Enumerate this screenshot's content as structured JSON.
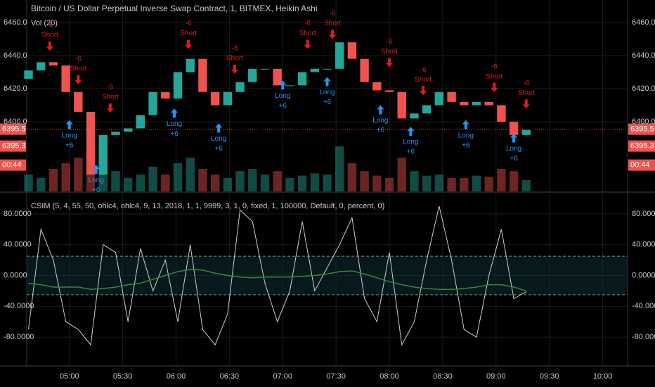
{
  "chart_data": [
    {
      "type": "candlestick",
      "title": "Bitcoin / US Dollar Perpetual Inverse Swap Contract, 1, BITMEX, Heikin Ashi",
      "subtitle": "Vol (20)",
      "x": [
        277,
        284,
        291,
        298,
        305,
        312,
        319,
        326,
        333,
        340,
        347,
        354,
        361,
        368,
        375,
        382,
        389,
        396,
        403,
        410,
        417,
        424,
        431,
        438,
        445,
        452,
        459,
        466,
        473,
        480,
        487,
        494,
        501,
        508,
        515,
        522,
        529,
        536,
        543,
        550,
        557
      ],
      "open": [
        6426,
        6431,
        6436,
        6434,
        6418,
        6406,
        6368,
        6392,
        6394,
        6396,
        6404,
        6418,
        6414,
        6430,
        6438,
        6418,
        6410,
        6418,
        6424,
        6432,
        6432,
        6422,
        6422,
        6430,
        6432,
        6432,
        6448,
        6438,
        6424,
        6419,
        6418,
        6402,
        6405,
        6410,
        6418,
        6412,
        6410,
        6412,
        6410,
        6400,
        6392
      ],
      "close": [
        6431,
        6436,
        6434,
        6418,
        6406,
        6368,
        6392,
        6394,
        6396,
        6404,
        6418,
        6414,
        6430,
        6438,
        6418,
        6410,
        6418,
        6424,
        6432,
        6432,
        6422,
        6422,
        6430,
        6432,
        6432,
        6448,
        6438,
        6424,
        6419,
        6418,
        6402,
        6405,
        6410,
        6418,
        6412,
        6410,
        6412,
        6410,
        6400,
        6392,
        6395
      ],
      "volume": [
        15,
        12,
        20,
        25,
        30,
        70,
        40,
        18,
        12,
        15,
        22,
        15,
        25,
        30,
        20,
        15,
        12,
        18,
        20,
        15,
        18,
        12,
        14,
        16,
        15,
        40,
        25,
        18,
        14,
        12,
        30,
        18,
        14,
        15,
        12,
        12,
        14,
        13,
        20,
        18,
        10
      ],
      "vlim": [
        0,
        100
      ],
      "up_color": "#26a69a",
      "down_color": "#ef5350",
      "xlim": [
        276,
        614
      ],
      "ylim": [
        6357.9,
        6473.6
      ],
      "yticks": [
        {
          "value": 6400,
          "label": "6400.0"
        },
        {
          "value": 6420,
          "label": "6420.0"
        },
        {
          "value": 6440,
          "label": "6440.0"
        },
        {
          "value": 6460,
          "label": "6460.0"
        }
      ],
      "signals": [
        {
          "side": "Short",
          "qty": "-6",
          "x": 289,
          "price": 6443
        },
        {
          "side": "Short",
          "qty": "-6",
          "x": 305,
          "price": 6422.6
        },
        {
          "side": "Short",
          "qty": "-6",
          "x": 323,
          "price": 6405.5
        },
        {
          "side": "Short",
          "qty": "-6",
          "x": 367,
          "price": 6444
        },
        {
          "side": "Short",
          "qty": "-6",
          "x": 393,
          "price": 6429
        },
        {
          "side": "Short",
          "qty": "-6",
          "x": 434,
          "price": 6444
        },
        {
          "side": "Short",
          "qty": "-6",
          "x": 448,
          "price": 6450
        },
        {
          "side": "Short",
          "qty": "-6",
          "x": 480,
          "price": 6433
        },
        {
          "side": "Short",
          "qty": "-6",
          "x": 499,
          "price": 6416
        },
        {
          "side": "Short",
          "qty": "-6",
          "x": 539,
          "price": 6418
        },
        {
          "side": "Short",
          "qty": "-6",
          "x": 557,
          "price": 6408
        },
        {
          "side": "Long",
          "qty": "+6",
          "x": 300,
          "price": 6401
        },
        {
          "side": "Long",
          "qty": "+6",
          "x": 315,
          "price": 6374
        },
        {
          "side": "Long",
          "qty": "+6",
          "x": 359,
          "price": 6408
        },
        {
          "side": "Long",
          "qty": "+6",
          "x": 384,
          "price": 6399
        },
        {
          "side": "Long",
          "qty": "+6",
          "x": 420,
          "price": 6425
        },
        {
          "side": "Long",
          "qty": "+6",
          "x": 445,
          "price": 6427
        },
        {
          "side": "Long",
          "qty": "+6",
          "x": 475,
          "price": 6410
        },
        {
          "side": "Long",
          "qty": "+6",
          "x": 492,
          "price": 6397
        },
        {
          "side": "Long",
          "qty": "+6",
          "x": 523,
          "price": 6401
        },
        {
          "side": "Long",
          "qty": "+6",
          "x": 550,
          "price": 6393
        }
      ],
      "last_price": {
        "value": 6395.5,
        "label": "6395.5"
      },
      "second_price": "6395.3",
      "countdown": "00:44"
    },
    {
      "type": "line",
      "title": "CSIM (5, 4, 55, 50, ohlc4, ohlc4, 9, 13, 2018, 1, 1, 9999, 3, 1, 0, fixed, 1, 100000, Default, 0, percent, 0)",
      "x": [
        277,
        284,
        291,
        298,
        305,
        312,
        319,
        326,
        333,
        340,
        347,
        354,
        361,
        368,
        375,
        382,
        389,
        396,
        403,
        410,
        417,
        424,
        431,
        438,
        445,
        452,
        459,
        466,
        473,
        480,
        487,
        494,
        501,
        508,
        515,
        522,
        529,
        536,
        543,
        550,
        557
      ],
      "series": [
        {
          "color": "#d0d0d0",
          "values": [
            -70,
            60,
            20,
            -60,
            -70,
            -90,
            40,
            30,
            -60,
            35,
            -20,
            20,
            -60,
            40,
            -70,
            -90,
            -50,
            85,
            70,
            -10,
            -60,
            -20,
            70,
            -20,
            10,
            40,
            75,
            -30,
            -60,
            30,
            -90,
            -60,
            20,
            90,
            20,
            -70,
            -80,
            0,
            60,
            -30,
            -21
          ]
        },
        {
          "color": "#2e8b3a",
          "values": [
            -10,
            -12,
            -15,
            -15,
            -15,
            -18,
            -17,
            -15,
            -12,
            -10,
            -5,
            0,
            5,
            8,
            7,
            3,
            0,
            -2,
            -3,
            -2,
            -2,
            -2,
            -1,
            0,
            2,
            5,
            6,
            2,
            -3,
            -8,
            -12,
            -15,
            -17,
            -18,
            -18,
            -17,
            -15,
            -12,
            -12,
            -15,
            -20
          ]
        }
      ],
      "levels": [
        25,
        -25
      ],
      "xlim": [
        276,
        614
      ],
      "xticks": [
        {
          "value": 300,
          "label": "05:00"
        },
        {
          "value": 330,
          "label": "05:30"
        },
        {
          "value": 360,
          "label": "06:00"
        },
        {
          "value": 390,
          "label": "06:30"
        },
        {
          "value": 420,
          "label": "07:00"
        },
        {
          "value": 450,
          "label": "07:30"
        },
        {
          "value": 480,
          "label": "08:00"
        },
        {
          "value": 510,
          "label": "08:30"
        },
        {
          "value": 540,
          "label": "09:00"
        },
        {
          "value": 570,
          "label": "09:30"
        },
        {
          "value": 600,
          "label": "10:00"
        }
      ],
      "ylim": [
        -116.4,
        106.4
      ],
      "yticks": [
        {
          "value": -80,
          "label": "-80.0000"
        },
        {
          "value": -40,
          "label": "-40.0000"
        },
        {
          "value": 0,
          "label": "0.0000"
        },
        {
          "value": 40,
          "label": "40.0000"
        },
        {
          "value": 80,
          "label": "80.0000"
        }
      ],
      "grid": true
    }
  ]
}
